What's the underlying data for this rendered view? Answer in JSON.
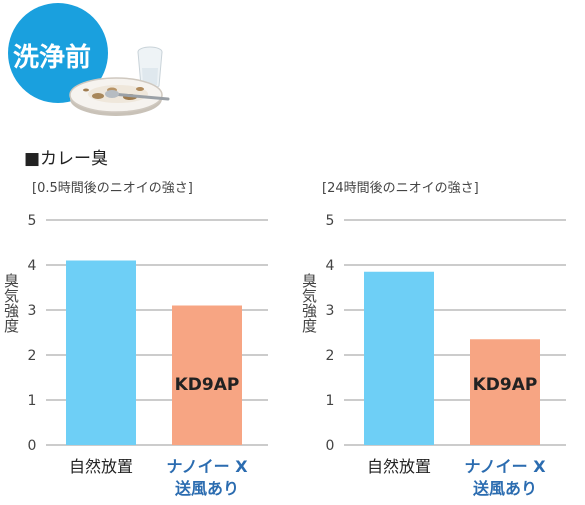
{
  "badge": {
    "label": "洗浄前",
    "color": "#1aa0de"
  },
  "section_title": "■カレー臭",
  "colors": {
    "natural_bar": "#6ecff6",
    "nanoe_bar": "#f7a583",
    "nanoe_label": "#2b6cb0",
    "grid": "#9a9a9a",
    "axis_text": "#444444"
  },
  "chart_data": [
    {
      "type": "bar",
      "subtitle": "[0.5時間後のニオイの強さ]",
      "ylabel": "臭気強度",
      "ylim": [
        0,
        5
      ],
      "yticks": [
        "0",
        "1",
        "2",
        "3",
        "4",
        "5"
      ],
      "categories": [
        "自然放置",
        "ナノイー X 送風あり"
      ],
      "category_lines": [
        [
          "自然放置"
        ],
        [
          "ナノイー X",
          "送風あり"
        ]
      ],
      "values": [
        4.1,
        3.1
      ],
      "bar_labels": [
        "",
        "KD9AP"
      ]
    },
    {
      "type": "bar",
      "subtitle": "[24時間後のニオイの強さ]",
      "ylabel": "臭気強度",
      "ylim": [
        0,
        5
      ],
      "yticks": [
        "0",
        "1",
        "2",
        "3",
        "4",
        "5"
      ],
      "categories": [
        "自然放置",
        "ナノイー X 送風あり"
      ],
      "category_lines": [
        [
          "自然放置"
        ],
        [
          "ナノイー X",
          "送風あり"
        ]
      ],
      "values": [
        3.85,
        2.35
      ],
      "bar_labels": [
        "",
        "KD9AP"
      ]
    }
  ]
}
